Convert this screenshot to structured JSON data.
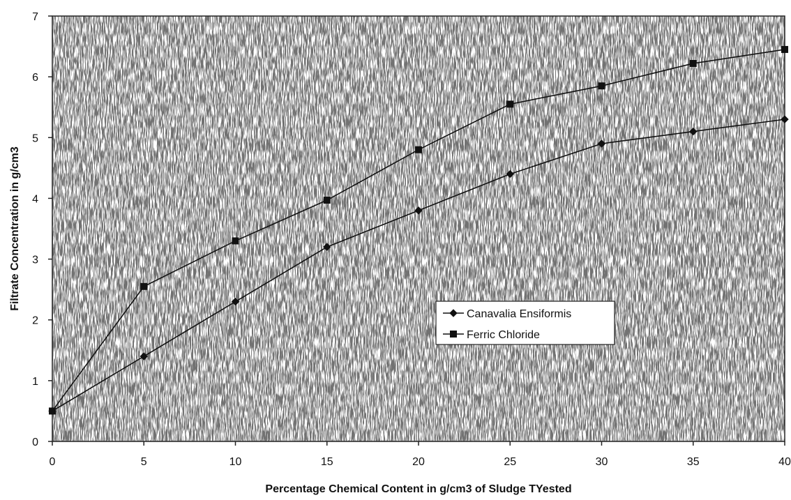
{
  "chart_data": {
    "type": "line",
    "title": "",
    "xlabel": "Percentage Chemical Content in g/cm3 of Sludge TYested",
    "ylabel": "Filtrate Concentration in g/cm3",
    "xlim": [
      0,
      40
    ],
    "ylim": [
      0,
      7
    ],
    "x": [
      0,
      5,
      10,
      15,
      20,
      25,
      30,
      35,
      40
    ],
    "x_ticks": [
      "0",
      "5",
      "10",
      "15",
      "20",
      "25",
      "30",
      "35",
      "40"
    ],
    "y_ticks": [
      "0",
      "1",
      "2",
      "3",
      "4",
      "5",
      "6",
      "7"
    ],
    "grid": false,
    "legend_position": "center-right",
    "series": [
      {
        "name": "Canavalia Ensiformis",
        "marker": "diamond",
        "color": "#111111",
        "values": [
          0.5,
          1.4,
          2.3,
          3.2,
          3.8,
          4.4,
          4.9,
          5.1,
          5.3
        ]
      },
      {
        "name": "Ferric Chloride",
        "marker": "square",
        "color": "#111111",
        "values": [
          0.5,
          2.55,
          3.3,
          3.97,
          4.8,
          5.55,
          5.85,
          6.22,
          6.45
        ]
      }
    ]
  }
}
